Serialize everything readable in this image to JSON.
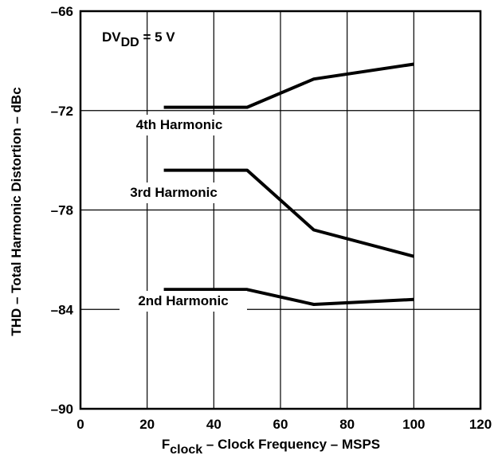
{
  "chart_data": {
    "type": "line",
    "xlabel": {
      "prefix": "F",
      "subscript": "clock",
      "suffix": " – Clock Frequency – MSPS"
    },
    "ylabel": "THD – Total Harmonic Distortion – dBc",
    "xlim": [
      0,
      120
    ],
    "ylim": [
      -90,
      -66
    ],
    "xticks": [
      0,
      20,
      40,
      60,
      80,
      100,
      120
    ],
    "yticks": [
      -90,
      -84,
      -78,
      -72,
      -66
    ],
    "xtick_labels": [
      "0",
      "20",
      "40",
      "60",
      "80",
      "100",
      "120"
    ],
    "ytick_labels": [
      "–90",
      "–84",
      "–78",
      "–72",
      "–66"
    ],
    "grid": true,
    "annotation": {
      "prefix": "DV",
      "subscript": "DD",
      "suffix": " = 5 V"
    },
    "series": [
      {
        "name": "4th Harmonic",
        "x": [
          25,
          50,
          70,
          100
        ],
        "y": [
          -71.8,
          -71.8,
          -70.1,
          -69.2
        ]
      },
      {
        "name": "3rd Harmonic",
        "x": [
          25,
          50,
          70,
          100
        ],
        "y": [
          -75.6,
          -75.6,
          -79.2,
          -80.8
        ]
      },
      {
        "name": "2nd Harmonic",
        "x": [
          25,
          50,
          70,
          100
        ],
        "y": [
          -82.8,
          -82.8,
          -83.7,
          -83.4
        ]
      }
    ]
  }
}
